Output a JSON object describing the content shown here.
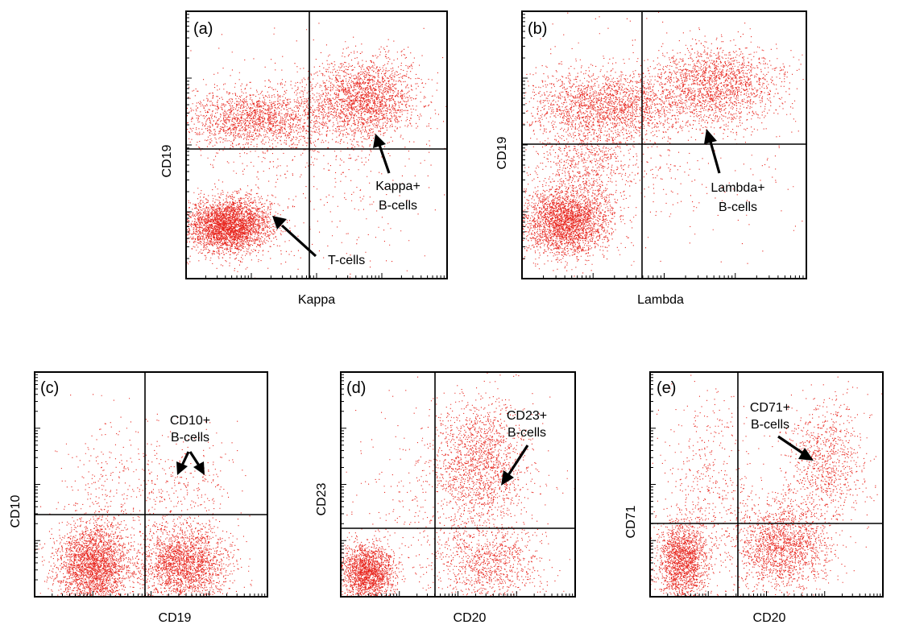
{
  "chart_data": [
    {
      "type": "scatter",
      "panel_label": "(a)",
      "xlabel": "Kappa",
      "ylabel": "CD19",
      "scale": "log",
      "xlim": [
        0,
        4
      ],
      "ylim": [
        0,
        4
      ],
      "gates": {
        "x": 1.8,
        "y": 2.04
      },
      "populations": [
        {
          "name": "T-cells",
          "cx": 0.65,
          "cy": 0.8,
          "sx": 0.32,
          "sy": 0.2,
          "n": 3200
        },
        {
          "name": "Kappa+ B-cells",
          "cx": 2.75,
          "cy": 2.7,
          "sx": 0.4,
          "sy": 0.3,
          "n": 2000
        },
        {
          "name": "B-cells (kappa-)",
          "cx": 1.1,
          "cy": 2.4,
          "sx": 0.6,
          "sy": 0.22,
          "n": 1800
        },
        {
          "name": "scatter",
          "cx": 1.8,
          "cy": 1.8,
          "sx": 1.1,
          "sy": 0.9,
          "n": 600
        }
      ],
      "annotations": [
        {
          "lines": [
            "Kappa+",
            "B-cells"
          ],
          "target": "Kappa+ B-cells"
        },
        {
          "lines": [
            "T-cells"
          ],
          "target": "T-cells"
        }
      ]
    },
    {
      "type": "scatter",
      "panel_label": "(b)",
      "xlabel": "Lambda",
      "ylabel": "CD19",
      "scale": "log",
      "xlim": [
        0,
        4
      ],
      "ylim": [
        0,
        4
      ],
      "gates": {
        "x": 1.8,
        "y": 2.1
      },
      "populations": [
        {
          "name": "T-cells",
          "cx": 0.6,
          "cy": 0.85,
          "sx": 0.3,
          "sy": 0.25,
          "n": 2600
        },
        {
          "name": "Lambda+ B-cells",
          "cx": 2.7,
          "cy": 2.9,
          "sx": 0.45,
          "sy": 0.3,
          "n": 1800
        },
        {
          "name": "B-cells (lambda-)",
          "cx": 1.2,
          "cy": 2.6,
          "sx": 0.55,
          "sy": 0.25,
          "n": 1800
        },
        {
          "name": "bridge",
          "cx": 0.9,
          "cy": 1.7,
          "sx": 0.35,
          "sy": 0.45,
          "n": 900
        },
        {
          "name": "scatter",
          "cx": 1.8,
          "cy": 2.0,
          "sx": 1.0,
          "sy": 0.8,
          "n": 500
        }
      ],
      "annotations": [
        {
          "lines": [
            "Lambda+",
            "B-cells"
          ],
          "target": "Lambda+ B-cells"
        }
      ]
    },
    {
      "type": "scatter",
      "panel_label": "(c)",
      "xlabel": "CD19",
      "ylabel": "CD10",
      "scale": "log",
      "xlim": [
        0,
        4
      ],
      "ylim": [
        0,
        4
      ],
      "gates": {
        "x": 1.9,
        "y": 1.55
      },
      "populations": [
        {
          "name": "CD19- cells",
          "cx": 1.0,
          "cy": 0.55,
          "sx": 0.32,
          "sy": 0.38,
          "n": 2600
        },
        {
          "name": "CD19+ cells",
          "cx": 2.55,
          "cy": 0.6,
          "sx": 0.38,
          "sy": 0.35,
          "n": 2200
        },
        {
          "name": "CD10+ B-cells",
          "cx": 2.6,
          "cy": 2.0,
          "sx": 0.4,
          "sy": 0.45,
          "n": 250
        },
        {
          "name": "scatter",
          "cx": 1.4,
          "cy": 1.8,
          "sx": 0.45,
          "sy": 0.7,
          "n": 350
        }
      ],
      "annotations": [
        {
          "lines": [
            "CD10+",
            "B-cells"
          ],
          "target": "CD10+ B-cells"
        }
      ]
    },
    {
      "type": "scatter",
      "panel_label": "(d)",
      "xlabel": "CD20",
      "ylabel": "CD23",
      "scale": "log",
      "xlim": [
        0,
        4
      ],
      "ylim": [
        0,
        4
      ],
      "gates": {
        "x": 1.4,
        "y": 1.15
      },
      "populations": [
        {
          "name": "CD20- cells",
          "cx": 0.45,
          "cy": 0.45,
          "sx": 0.22,
          "sy": 0.25,
          "n": 1800
        },
        {
          "name": "CD23+ B-cells",
          "cx": 2.35,
          "cy": 2.4,
          "sx": 0.4,
          "sy": 0.55,
          "n": 1500
        },
        {
          "name": "CD20+ CD23- cells",
          "cx": 2.5,
          "cy": 0.6,
          "sx": 0.45,
          "sy": 0.35,
          "n": 900
        },
        {
          "name": "scatter",
          "cx": 1.8,
          "cy": 1.6,
          "sx": 0.9,
          "sy": 0.9,
          "n": 500
        }
      ],
      "annotations": [
        {
          "lines": [
            "CD23+",
            "B-cells"
          ],
          "target": "CD23+ B-cells"
        }
      ]
    },
    {
      "type": "scatter",
      "panel_label": "(e)",
      "xlabel": "CD20",
      "ylabel": "CD71",
      "scale": "log",
      "xlim": [
        0,
        4
      ],
      "ylim": [
        0,
        4
      ],
      "gates": {
        "x": 1.3,
        "y": 1.35
      },
      "populations": [
        {
          "name": "CD20- cells",
          "cx": 0.55,
          "cy": 0.65,
          "sx": 0.22,
          "sy": 0.35,
          "n": 1700
        },
        {
          "name": "CD20+ cells",
          "cx": 2.3,
          "cy": 0.9,
          "sx": 0.4,
          "sy": 0.4,
          "n": 1700
        },
        {
          "name": "CD71+ B-cells",
          "cx": 3.0,
          "cy": 2.4,
          "sx": 0.35,
          "sy": 0.55,
          "n": 900
        },
        {
          "name": "scatter",
          "cx": 1.0,
          "cy": 2.0,
          "sx": 0.4,
          "sy": 0.9,
          "n": 500
        }
      ],
      "annotations": [
        {
          "lines": [
            "CD71+",
            "B-cells"
          ],
          "target": "CD71+ B-cells"
        }
      ]
    }
  ],
  "colors": {
    "dots": "#e8261e",
    "axes": "#000000"
  }
}
